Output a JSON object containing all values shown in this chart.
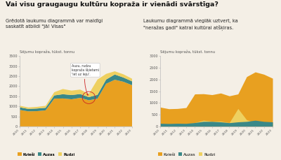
{
  "title": "Vai visu graugaugu kultūru kopraža ir vienādi svārstīga?",
  "subtitle_left": "Grēdotā laukumu diagrammā var maldīgi\nsaskatīt atbildi \"Jā! Visas\"",
  "subtitle_right": "Laukumu diagrammā vieglāk uztvert, ka\n\"neražas gadi\" katrai kultūrai atšķiras.",
  "ylabel": "Sējumu kopraža, tūkst. tonnu",
  "years": [
    2010,
    2011,
    2012,
    2013,
    2014,
    2015,
    2016,
    2017,
    2018,
    2019,
    2020,
    2021,
    2022,
    2023
  ],
  "kvieši_s": [
    820,
    750,
    760,
    800,
    1380,
    1390,
    1350,
    1420,
    1300,
    1380,
    2120,
    2320,
    2220,
    2050
  ],
  "auzas_s": [
    130,
    120,
    130,
    125,
    160,
    210,
    210,
    190,
    155,
    190,
    210,
    260,
    210,
    190
  ],
  "rudzi_s": [
    80,
    70,
    80,
    100,
    160,
    260,
    220,
    220,
    160,
    760,
    280,
    160,
    160,
    130
  ],
  "kvieši": [
    820,
    750,
    760,
    800,
    1380,
    1390,
    1350,
    1420,
    1300,
    1380,
    2120,
    2320,
    2220,
    2050
  ],
  "auzas": [
    130,
    120,
    130,
    125,
    160,
    210,
    210,
    190,
    155,
    190,
    210,
    260,
    210,
    190
  ],
  "rudzi": [
    80,
    70,
    80,
    100,
    160,
    260,
    220,
    220,
    160,
    760,
    280,
    160,
    160,
    130
  ],
  "color_kvieši": "#E8A020",
  "color_auzas": "#3A8888",
  "color_rudzi": "#EED060",
  "bg_color": "#F4EFE6",
  "annotation_text": "Auzu, rudzu\nkopraža šķietami\n'iet uz leju'.",
  "yticks_left": [
    0,
    500,
    1000,
    1500,
    2000,
    2500,
    3000,
    3500
  ],
  "yticks_right": [
    0,
    500,
    1000,
    1500,
    2000,
    2500,
    3000
  ],
  "ylim_left": [
    0,
    3500
  ],
  "ylim_right": [
    0,
    3000
  ]
}
